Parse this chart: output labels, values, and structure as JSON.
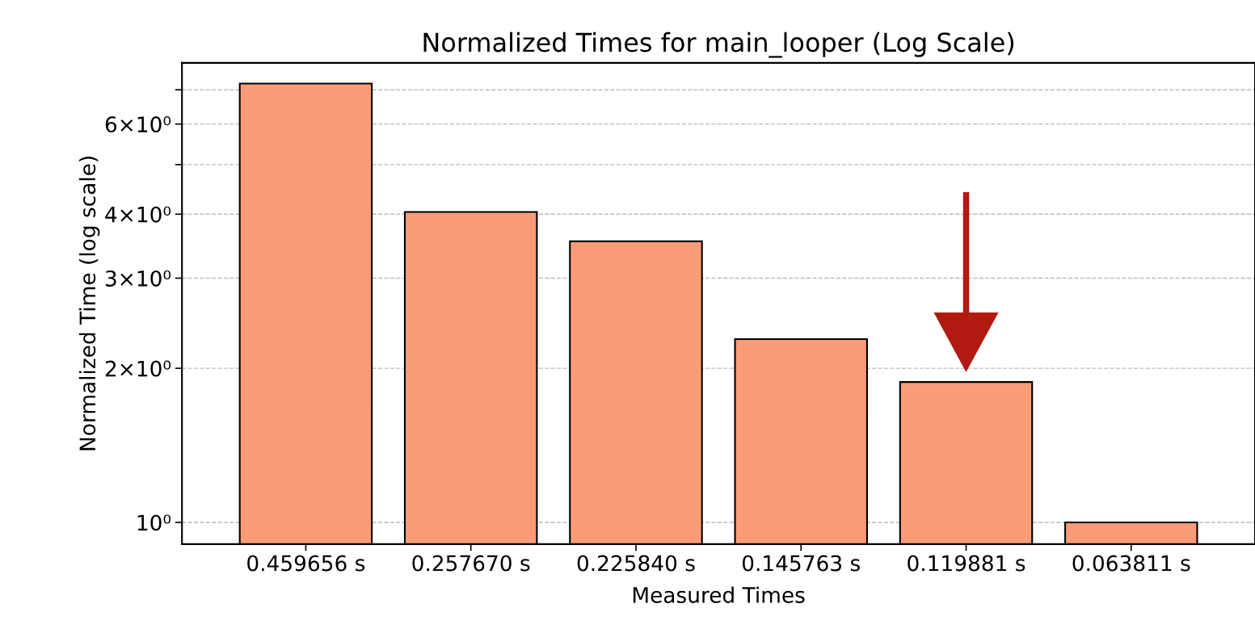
{
  "chart_data": {
    "type": "bar",
    "title": "Normalized Times for main_looper (Log Scale)",
    "xlabel": "Measured Times",
    "ylabel": "Normalized Time (log scale)",
    "categories": [
      "0.459656 s",
      "0.257670 s",
      "0.225840 s",
      "0.145763 s",
      "0.119881 s",
      "0.063811 s"
    ],
    "values": [
      7.2,
      4.04,
      3.54,
      2.28,
      1.88,
      1.0
    ],
    "color": "#fa9c78",
    "log": "y",
    "ylim": [
      0.907,
      7.9
    ],
    "yticks": [
      {
        "value": 1,
        "label": "10⁰"
      },
      {
        "value": 2,
        "label": "2×10⁰"
      },
      {
        "value": 3,
        "label": "3×10⁰"
      },
      {
        "value": 4,
        "label": "4×10⁰"
      },
      {
        "value": 5,
        "label": null
      },
      {
        "value": 6,
        "label": "6×10⁰"
      },
      {
        "value": 7,
        "label": null
      }
    ],
    "grid": "y"
  }
}
